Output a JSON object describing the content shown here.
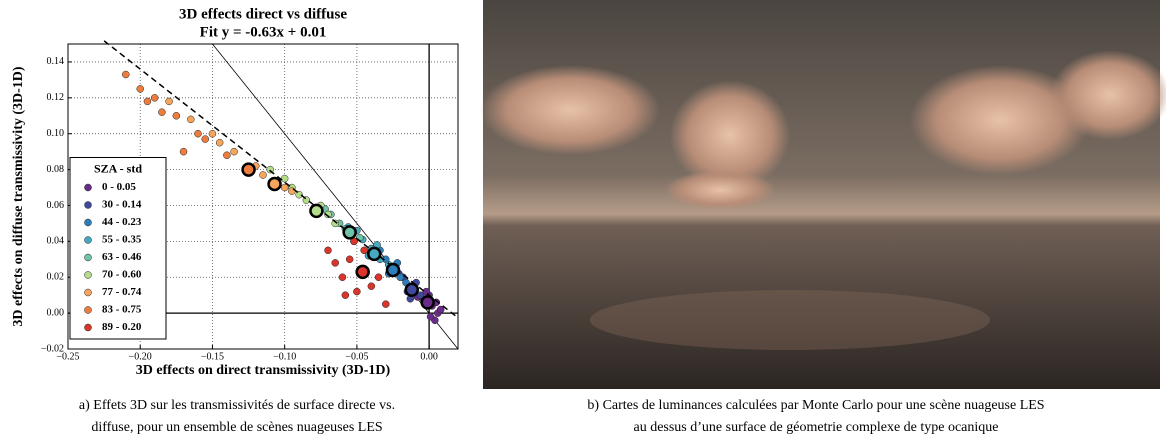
{
  "chart_data": {
    "type": "scatter",
    "title": [
      "3D effects direct vs diffuse",
      "Fit y = -0.63x + 0.01"
    ],
    "x_label": "3D effects on direct transmissivity (3D-1D)",
    "y_label": "3D effects on diffuse transmissivity (3D-1D)",
    "xlim": [
      -0.25,
      0.02
    ],
    "ylim": [
      -0.02,
      0.15
    ],
    "xticks": [
      {
        "value": -0.25,
        "label": "−0.25"
      },
      {
        "value": -0.2,
        "label": "−0.20"
      },
      {
        "value": -0.15,
        "label": "−0.15"
      },
      {
        "value": -0.1,
        "label": "−0.10"
      },
      {
        "value": -0.05,
        "label": "−0.05"
      },
      {
        "value": 0,
        "label": "0.00"
      }
    ],
    "yticks": [
      {
        "value": -0.02,
        "label": "−0.02"
      },
      {
        "value": 0,
        "label": "0.00"
      },
      {
        "value": 0.02,
        "label": "0.02"
      },
      {
        "value": 0.04,
        "label": "0.04"
      },
      {
        "value": 0.06,
        "label": "0.06"
      },
      {
        "value": 0.08,
        "label": "0.08"
      },
      {
        "value": 0.1,
        "label": "0.10"
      },
      {
        "value": 0.12,
        "label": "0.12"
      },
      {
        "value": 0.14,
        "label": "0.14"
      }
    ],
    "grid": true,
    "fit": {
      "slope": -0.63,
      "intercept": 0.01
    },
    "legend": "lower left",
    "legend_title": "SZA - std",
    "series": [
      {
        "name": "0 - 0.05",
        "color": "#6a2c8a",
        "x": [
          0.002,
          -0.004,
          0.006,
          0.0,
          -0.008,
          0.004,
          0.008,
          -0.002,
          0.001,
          0.005
        ],
        "values": [
          0.004,
          0.008,
          0.0,
          0.01,
          0.009,
          -0.004,
          0.002,
          0.012,
          -0.002,
          0.006
        ],
        "mean": {
          "x": -0.001,
          "y": 0.006
        }
      },
      {
        "name": "30 - 0.14",
        "color": "#3f4a9c",
        "x": [
          -0.012,
          -0.018,
          -0.006,
          -0.015,
          -0.009,
          -0.002,
          -0.021,
          -0.013
        ],
        "values": [
          0.015,
          0.02,
          0.01,
          0.012,
          0.017,
          0.006,
          0.022,
          0.008
        ],
        "mean": {
          "x": -0.012,
          "y": 0.013
        }
      },
      {
        "name": "44 - 0.23",
        "color": "#2d7fbb",
        "x": [
          -0.025,
          -0.03,
          -0.02,
          -0.034,
          -0.028,
          -0.016,
          -0.038,
          -0.022
        ],
        "values": [
          0.026,
          0.03,
          0.02,
          0.035,
          0.022,
          0.017,
          0.036,
          0.028
        ],
        "mean": {
          "x": -0.025,
          "y": 0.024
        }
      },
      {
        "name": "55 - 0.35",
        "color": "#47a9bf",
        "x": [
          -0.04,
          -0.046,
          -0.034,
          -0.05,
          -0.028,
          -0.056,
          -0.042,
          -0.036
        ],
        "values": [
          0.036,
          0.041,
          0.03,
          0.046,
          0.027,
          0.048,
          0.032,
          0.038
        ],
        "mean": {
          "x": -0.038,
          "y": 0.033
        }
      },
      {
        "name": "63 - 0.46",
        "color": "#6fc3a6",
        "x": [
          -0.055,
          -0.062,
          -0.048,
          -0.068,
          -0.052,
          -0.072,
          -0.058
        ],
        "values": [
          0.046,
          0.05,
          0.042,
          0.055,
          0.04,
          0.058,
          0.047
        ],
        "mean": {
          "x": -0.055,
          "y": 0.045
        }
      },
      {
        "name": "70 - 0.60",
        "color": "#b5dc8a",
        "x": [
          -0.078,
          -0.085,
          -0.07,
          -0.095,
          -0.065,
          -0.1,
          -0.09,
          -0.075,
          -0.11
        ],
        "values": [
          0.058,
          0.063,
          0.055,
          0.07,
          0.05,
          0.075,
          0.066,
          0.06,
          0.08
        ],
        "mean": {
          "x": -0.078,
          "y": 0.057
        }
      },
      {
        "name": "77 - 0.74",
        "color": "#f6a55c",
        "x": [
          -0.107,
          -0.12,
          -0.095,
          -0.135,
          -0.15,
          -0.115,
          -0.165,
          -0.1,
          -0.145,
          -0.18
        ],
        "values": [
          0.073,
          0.082,
          0.068,
          0.09,
          0.1,
          0.077,
          0.108,
          0.07,
          0.095,
          0.118
        ],
        "mean": {
          "x": -0.107,
          "y": 0.072
        }
      },
      {
        "name": "83 - 0.75",
        "color": "#ec7d3e",
        "x": [
          -0.125,
          -0.14,
          -0.16,
          -0.175,
          -0.19,
          -0.2,
          -0.21,
          -0.155,
          -0.185,
          -0.195,
          -0.17
        ],
        "values": [
          0.08,
          0.088,
          0.1,
          0.11,
          0.12,
          0.125,
          0.133,
          0.097,
          0.112,
          0.118,
          0.09
        ],
        "mean": {
          "x": -0.125,
          "y": 0.08
        }
      },
      {
        "name": "89 - 0.20",
        "color": "#d9352a",
        "x": [
          -0.046,
          -0.055,
          -0.06,
          -0.04,
          -0.05,
          -0.065,
          -0.035,
          -0.07,
          -0.03,
          -0.058,
          -0.045,
          -0.052
        ],
        "values": [
          0.023,
          0.03,
          0.02,
          0.015,
          0.012,
          0.028,
          0.02,
          0.035,
          0.005,
          0.01,
          0.035,
          0.04
        ],
        "mean": {
          "x": -0.046,
          "y": 0.023
        }
      }
    ]
  },
  "captions": {
    "left": [
      "a) Effets 3D sur les transmissivités de surface directe vs.",
      "diffuse, pour un ensemble de scènes nuageuses LES"
    ],
    "right": [
      "b) Cartes de luminances calculées par Monte Carlo pour une scène nuageuse LES",
      "au dessus d’une surface de géometrie complexe de type ocanique"
    ]
  }
}
